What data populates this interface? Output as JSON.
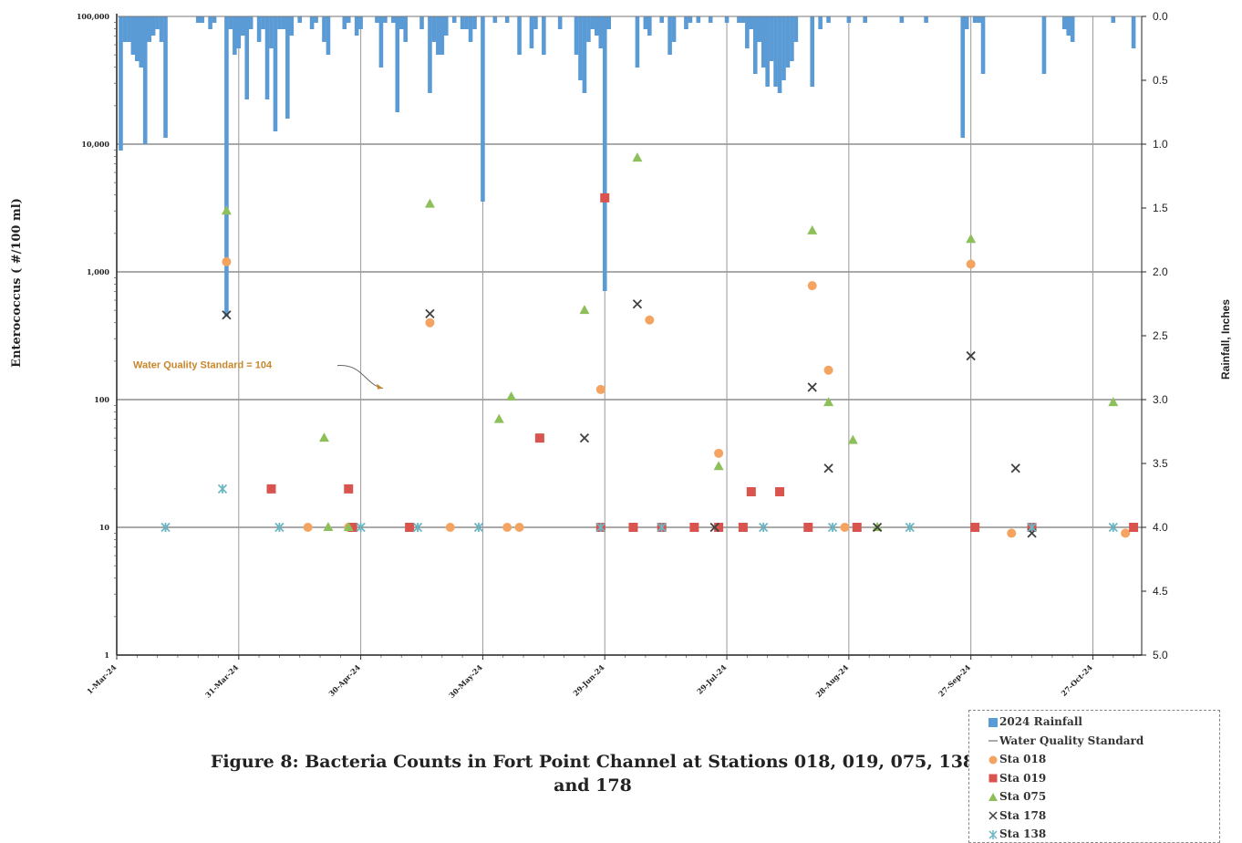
{
  "chart_data": {
    "type": "scatter",
    "title": "Figure 8:  Bacteria Counts in Fort Point Channel at Stations 018, 019, 075, 138 and 178",
    "ylabel": "Enterococcus ( #/100 ml)",
    "y2label": "Rainfall, Inches",
    "y_scale": "log",
    "ylim": [
      1,
      100000
    ],
    "y_ticks": [
      "1",
      "10",
      "100",
      "1,000",
      "10,000",
      "100,000"
    ],
    "y2lim": [
      0,
      5.0
    ],
    "y2_inverted": true,
    "y2_ticks": [
      "0.0",
      "0.5",
      "1.0",
      "1.5",
      "2.0",
      "2.5",
      "3.0",
      "3.5",
      "4.0",
      "4.5",
      "5.0"
    ],
    "xlim": [
      "2024-03-01",
      "2024-11-08"
    ],
    "x_ticks": [
      "1-Mar-24",
      "31-Mar-24",
      "30-Apr-24",
      "30-May-24",
      "29-Jun-24",
      "29-Jul-24",
      "28-Aug-24",
      "27-Sep-24",
      "27-Oct-24"
    ],
    "grid": true,
    "annotation": "Water Quality Standard = 104",
    "standard_value": 104,
    "legend_position": "bottom-right",
    "colors": {
      "rainfall": "#5b9bd5",
      "sta018": "#f4a460",
      "sta019": "#d9534f",
      "sta075": "#8dbf5a",
      "sta178": "#404040",
      "sta138": "#6bb7c4",
      "grid": "#555555",
      "annotation": "#c8862c"
    },
    "series": [
      {
        "name": "2024 Rainfall",
        "marker": "bar",
        "color": "#5b9bd5",
        "points": [
          [
            "2024-03-02",
            1.05
          ],
          [
            "2024-03-03",
            0.2
          ],
          [
            "2024-03-04",
            0.2
          ],
          [
            "2024-03-05",
            0.3
          ],
          [
            "2024-03-06",
            0.35
          ],
          [
            "2024-03-07",
            0.4
          ],
          [
            "2024-03-08",
            1.0
          ],
          [
            "2024-03-09",
            0.2
          ],
          [
            "2024-03-10",
            0.15
          ],
          [
            "2024-03-11",
            0.1
          ],
          [
            "2024-03-12",
            0.2
          ],
          [
            "2024-03-13",
            0.95
          ],
          [
            "2024-03-21",
            0.05
          ],
          [
            "2024-03-22",
            0.05
          ],
          [
            "2024-03-24",
            0.1
          ],
          [
            "2024-03-25",
            0.05
          ],
          [
            "2024-03-28",
            2.35
          ],
          [
            "2024-03-29",
            0.1
          ],
          [
            "2024-03-30",
            0.3
          ],
          [
            "2024-03-31",
            0.25
          ],
          [
            "2024-04-01",
            0.15
          ],
          [
            "2024-04-02",
            0.65
          ],
          [
            "2024-04-03",
            0.1
          ],
          [
            "2024-04-05",
            0.2
          ],
          [
            "2024-04-06",
            0.1
          ],
          [
            "2024-04-07",
            0.65
          ],
          [
            "2024-04-08",
            0.25
          ],
          [
            "2024-04-09",
            0.9
          ],
          [
            "2024-04-10",
            0.1
          ],
          [
            "2024-04-11",
            0.1
          ],
          [
            "2024-04-12",
            0.8
          ],
          [
            "2024-04-13",
            0.15
          ],
          [
            "2024-04-15",
            0.05
          ],
          [
            "2024-04-18",
            0.1
          ],
          [
            "2024-04-19",
            0.05
          ],
          [
            "2024-04-21",
            0.2
          ],
          [
            "2024-04-22",
            0.3
          ],
          [
            "2024-04-26",
            0.1
          ],
          [
            "2024-04-27",
            0.05
          ],
          [
            "2024-04-29",
            0.15
          ],
          [
            "2024-04-30",
            0.1
          ],
          [
            "2024-05-04",
            0.05
          ],
          [
            "2024-05-05",
            0.4
          ],
          [
            "2024-05-06",
            0.05
          ],
          [
            "2024-05-08",
            0.05
          ],
          [
            "2024-05-09",
            0.75
          ],
          [
            "2024-05-10",
            0.1
          ],
          [
            "2024-05-11",
            0.2
          ],
          [
            "2024-05-15",
            0.1
          ],
          [
            "2024-05-17",
            0.6
          ],
          [
            "2024-05-18",
            0.2
          ],
          [
            "2024-05-19",
            0.3
          ],
          [
            "2024-05-20",
            0.3
          ],
          [
            "2024-05-21",
            0.15
          ],
          [
            "2024-05-23",
            0.05
          ],
          [
            "2024-05-25",
            0.1
          ],
          [
            "2024-05-26",
            0.1
          ],
          [
            "2024-05-27",
            0.2
          ],
          [
            "2024-05-28",
            0.1
          ],
          [
            "2024-05-30",
            1.45
          ],
          [
            "2024-06-02",
            0.05
          ],
          [
            "2024-06-05",
            0.05
          ],
          [
            "2024-06-08",
            0.3
          ],
          [
            "2024-06-11",
            0.25
          ],
          [
            "2024-06-12",
            0.1
          ],
          [
            "2024-06-14",
            0.3
          ],
          [
            "2024-06-18",
            0.1
          ],
          [
            "2024-06-22",
            0.3
          ],
          [
            "2024-06-23",
            0.5
          ],
          [
            "2024-06-24",
            0.6
          ],
          [
            "2024-06-25",
            0.2
          ],
          [
            "2024-06-26",
            0.1
          ],
          [
            "2024-06-27",
            0.15
          ],
          [
            "2024-06-28",
            0.25
          ],
          [
            "2024-06-29",
            2.15
          ],
          [
            "2024-06-30",
            0.1
          ],
          [
            "2024-07-07",
            0.4
          ],
          [
            "2024-07-09",
            0.1
          ],
          [
            "2024-07-10",
            0.15
          ],
          [
            "2024-07-13",
            0.05
          ],
          [
            "2024-07-15",
            0.3
          ],
          [
            "2024-07-16",
            0.2
          ],
          [
            "2024-07-19",
            0.1
          ],
          [
            "2024-07-20",
            0.05
          ],
          [
            "2024-07-22",
            0.05
          ],
          [
            "2024-07-25",
            0.05
          ],
          [
            "2024-07-29",
            0.05
          ],
          [
            "2024-08-01",
            0.05
          ],
          [
            "2024-08-02",
            0.05
          ],
          [
            "2024-08-03",
            0.25
          ],
          [
            "2024-08-04",
            0.1
          ],
          [
            "2024-08-05",
            0.45
          ],
          [
            "2024-08-06",
            0.2
          ],
          [
            "2024-08-07",
            0.4
          ],
          [
            "2024-08-08",
            0.55
          ],
          [
            "2024-08-09",
            0.35
          ],
          [
            "2024-08-10",
            0.55
          ],
          [
            "2024-08-11",
            0.6
          ],
          [
            "2024-08-12",
            0.5
          ],
          [
            "2024-08-13",
            0.4
          ],
          [
            "2024-08-14",
            0.35
          ],
          [
            "2024-08-15",
            0.2
          ],
          [
            "2024-08-19",
            0.55
          ],
          [
            "2024-08-21",
            0.1
          ],
          [
            "2024-08-23",
            0.05
          ],
          [
            "2024-08-28",
            0.05
          ],
          [
            "2024-09-01",
            0.05
          ],
          [
            "2024-09-10",
            0.05
          ],
          [
            "2024-09-16",
            0.05
          ],
          [
            "2024-09-25",
            0.95
          ],
          [
            "2024-09-26",
            0.1
          ],
          [
            "2024-09-28",
            0.05
          ],
          [
            "2024-09-29",
            0.05
          ],
          [
            "2024-09-30",
            0.45
          ],
          [
            "2024-10-15",
            0.45
          ],
          [
            "2024-10-20",
            0.1
          ],
          [
            "2024-10-21",
            0.15
          ],
          [
            "2024-10-22",
            0.2
          ],
          [
            "2024-11-01",
            0.05
          ],
          [
            "2024-11-06",
            0.25
          ]
        ]
      },
      {
        "name": "Sta 018",
        "marker": "circle",
        "color": "#f4a460",
        "points": [
          [
            "2024-03-28",
            1200
          ],
          [
            "2024-04-17",
            10
          ],
          [
            "2024-04-27",
            10
          ],
          [
            "2024-05-17",
            400
          ],
          [
            "2024-05-22",
            10
          ],
          [
            "2024-06-05",
            10
          ],
          [
            "2024-06-08",
            10
          ],
          [
            "2024-06-28",
            120
          ],
          [
            "2024-07-10",
            420
          ],
          [
            "2024-07-27",
            38
          ],
          [
            "2024-07-27",
            10
          ],
          [
            "2024-08-19",
            780
          ],
          [
            "2024-08-23",
            170
          ],
          [
            "2024-08-27",
            10
          ],
          [
            "2024-08-30",
            10
          ],
          [
            "2024-09-27",
            1150
          ],
          [
            "2024-10-07",
            9
          ],
          [
            "2024-11-04",
            9
          ]
        ]
      },
      {
        "name": "Sta 019",
        "marker": "square",
        "color": "#d9534f",
        "points": [
          [
            "2024-04-08",
            20
          ],
          [
            "2024-04-27",
            20
          ],
          [
            "2024-04-28",
            10
          ],
          [
            "2024-05-12",
            10
          ],
          [
            "2024-06-13",
            50
          ],
          [
            "2024-06-28",
            10
          ],
          [
            "2024-06-29",
            3800
          ],
          [
            "2024-07-06",
            10
          ],
          [
            "2024-07-13",
            10
          ],
          [
            "2024-07-21",
            10
          ],
          [
            "2024-07-27",
            10
          ],
          [
            "2024-08-02",
            10
          ],
          [
            "2024-08-04",
            19
          ],
          [
            "2024-08-11",
            19
          ],
          [
            "2024-08-18",
            10
          ],
          [
            "2024-08-30",
            10
          ],
          [
            "2024-09-28",
            10
          ],
          [
            "2024-10-12",
            10
          ],
          [
            "2024-11-06",
            10
          ]
        ]
      },
      {
        "name": "Sta 075",
        "marker": "triangle",
        "color": "#8dbf5a",
        "points": [
          [
            "2024-03-28",
            3000
          ],
          [
            "2024-04-21",
            50
          ],
          [
            "2024-04-22",
            10
          ],
          [
            "2024-04-27",
            10
          ],
          [
            "2024-05-17",
            3400
          ],
          [
            "2024-06-03",
            70
          ],
          [
            "2024-06-06",
            105
          ],
          [
            "2024-06-24",
            500
          ],
          [
            "2024-07-07",
            7800
          ],
          [
            "2024-07-27",
            30
          ],
          [
            "2024-08-19",
            2100
          ],
          [
            "2024-08-23",
            95
          ],
          [
            "2024-08-29",
            48
          ],
          [
            "2024-09-04",
            10
          ],
          [
            "2024-09-27",
            1800
          ],
          [
            "2024-11-01",
            95
          ]
        ]
      },
      {
        "name": "Sta 178",
        "marker": "x",
        "color": "#404040",
        "points": [
          [
            "2024-03-28",
            460
          ],
          [
            "2024-05-17",
            470
          ],
          [
            "2024-06-24",
            50
          ],
          [
            "2024-07-07",
            560
          ],
          [
            "2024-07-26",
            10
          ],
          [
            "2024-08-19",
            125
          ],
          [
            "2024-08-23",
            29
          ],
          [
            "2024-09-04",
            10
          ],
          [
            "2024-09-27",
            220
          ],
          [
            "2024-10-08",
            29
          ],
          [
            "2024-10-12",
            9
          ]
        ]
      },
      {
        "name": "Sta 138",
        "marker": "star",
        "color": "#6bb7c4",
        "points": [
          [
            "2024-03-13",
            10
          ],
          [
            "2024-03-27",
            20
          ],
          [
            "2024-04-10",
            10
          ],
          [
            "2024-04-30",
            10
          ],
          [
            "2024-05-14",
            10
          ],
          [
            "2024-05-29",
            10
          ],
          [
            "2024-06-28",
            10
          ],
          [
            "2024-07-13",
            10
          ],
          [
            "2024-08-07",
            10
          ],
          [
            "2024-08-24",
            10
          ],
          [
            "2024-09-12",
            10
          ],
          [
            "2024-10-12",
            10
          ],
          [
            "2024-11-01",
            10
          ]
        ]
      }
    ]
  },
  "legend": [
    {
      "label": "2024 Rainfall",
      "marker": "bar",
      "color": "#5b9bd5"
    },
    {
      "label": "Water Quality Standard",
      "marker": "line",
      "color": "#555555"
    },
    {
      "label": "Sta 018",
      "marker": "circle",
      "color": "#f4a460"
    },
    {
      "label": "Sta 019",
      "marker": "square",
      "color": "#d9534f"
    },
    {
      "label": "Sta 075",
      "marker": "triangle",
      "color": "#8dbf5a"
    },
    {
      "label": "Sta 178",
      "marker": "x",
      "color": "#404040"
    },
    {
      "label": "Sta 138",
      "marker": "star",
      "color": "#6bb7c4"
    }
  ],
  "caption_line1": "Figure 8:  Bacteria Counts in Fort Point Channel at Stations 018, 019, 075, 138",
  "caption_line2": "and 178"
}
